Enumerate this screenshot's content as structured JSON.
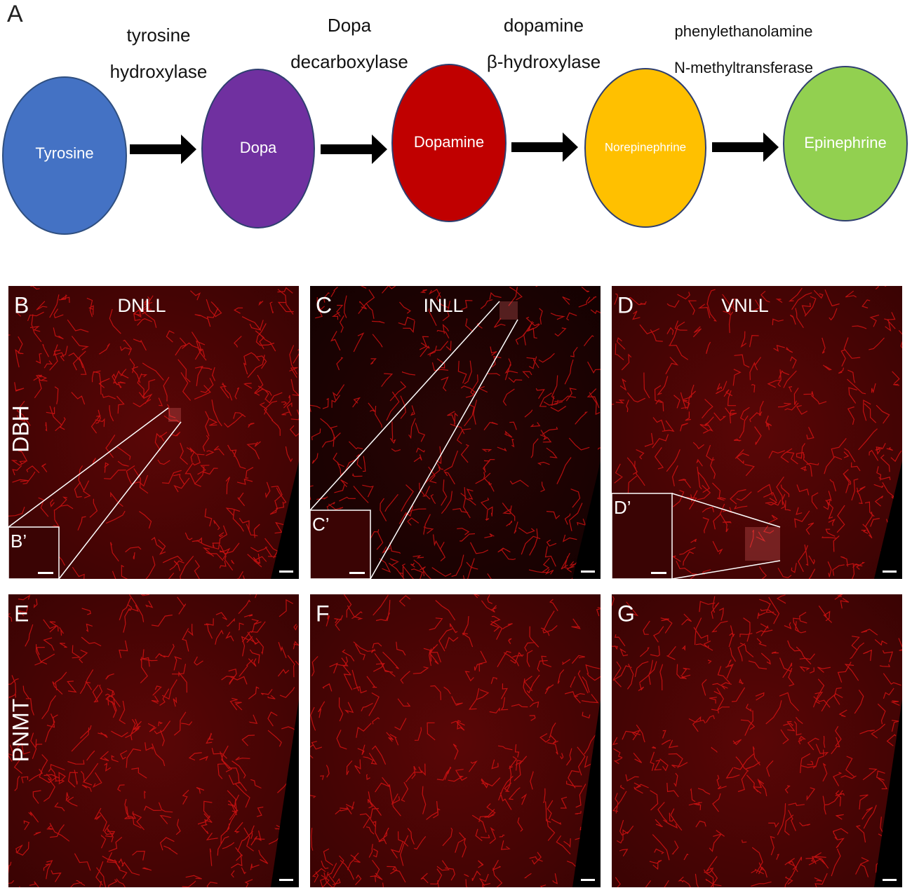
{
  "panel_a": {
    "label": "A",
    "nodes": [
      {
        "label": "Tyrosine"
      },
      {
        "label": "Dopa"
      },
      {
        "label": "Dopamine"
      },
      {
        "label": "Norepinephrine"
      },
      {
        "label": "Epinephrine"
      }
    ],
    "enzymes": [
      {
        "lines": [
          "tyrosine",
          "hydroxylase"
        ]
      },
      {
        "lines": [
          "Dopa",
          "decarboxylase"
        ]
      },
      {
        "lines": [
          "dopamine",
          "β-hydroxylase"
        ]
      },
      {
        "lines": [
          "phenylethanolamine",
          "N-methyltransferase"
        ]
      }
    ]
  },
  "panels": [
    {
      "label": "B",
      "title": "DNLL",
      "inset": "B’"
    },
    {
      "label": "C",
      "title": "INLL",
      "inset": "C’"
    },
    {
      "label": "D",
      "title": "VNLL",
      "inset": "D’"
    },
    {
      "label": "E"
    },
    {
      "label": "F"
    },
    {
      "label": "G"
    }
  ],
  "row_labels": [
    "DBH",
    "PNMT"
  ]
}
